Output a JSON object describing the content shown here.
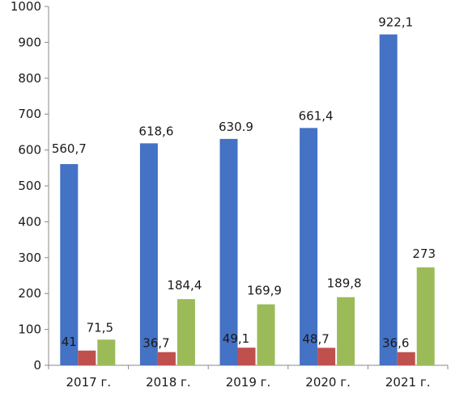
{
  "chart_data": {
    "type": "bar",
    "title": "",
    "xlabel": "",
    "ylabel": "",
    "categories": [
      "2017 г.",
      "2018 г.",
      "2019 г.",
      "2020 г.",
      "2021 г."
    ],
    "ylim": [
      0,
      1000
    ],
    "yticks": [
      0,
      100,
      200,
      300,
      400,
      500,
      600,
      700,
      800,
      900,
      1000
    ],
    "grid": false,
    "legend": "none",
    "series": [
      {
        "color": "#4472C4",
        "values": [
          560.7,
          618.6,
          630.9,
          661.4,
          922.1
        ],
        "labels": [
          "560,7",
          "618,6",
          "630.9",
          "661,4",
          "922,1"
        ]
      },
      {
        "color": "#C0504D",
        "values": [
          41,
          36.7,
          49.1,
          48.7,
          36.6
        ],
        "labels": [
          "41",
          "36,7",
          "49,1",
          "48,7",
          "36,6"
        ]
      },
      {
        "color": "#9BBB59",
        "values": [
          71.5,
          184.4,
          169.9,
          189.8,
          273
        ],
        "labels": [
          "71,5",
          "184,4",
          "169,9",
          "189,8",
          "273"
        ]
      }
    ]
  }
}
